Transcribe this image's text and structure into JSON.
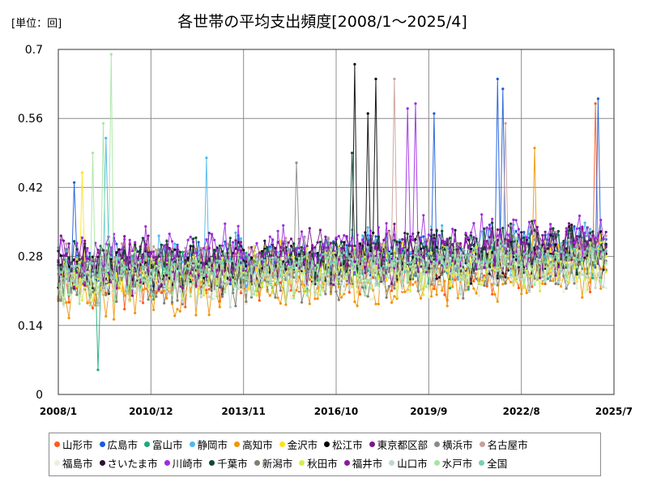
{
  "chart_data": {
    "type": "line",
    "title": "各世帯の平均支出頻度[2008/1～2025/4]",
    "unit_label": "[単位：回]",
    "xlabel": "",
    "ylabel": "",
    "ylim": [
      0,
      0.7
    ],
    "y_ticks": [
      "0",
      "0.14",
      "0.28",
      "0.42",
      "0.56",
      "0.7"
    ],
    "x_ticks": [
      "2008/1",
      "2010/12",
      "2013/11",
      "2016/10",
      "2019/9",
      "2022/8",
      "2025/7"
    ],
    "x_range": [
      "2008/1",
      "2025/7"
    ],
    "grid": true,
    "legend_position": "bottom",
    "series": [
      {
        "name": "山形市",
        "color": "#ff5a1a",
        "base": 0.22,
        "spread": 0.06,
        "peaks": [
          [
            "2024/12",
            0.59
          ]
        ]
      },
      {
        "name": "広島市",
        "color": "#1a5adc",
        "base": 0.26,
        "spread": 0.06,
        "peaks": [
          [
            "2008/7",
            0.43
          ],
          [
            "2019/11",
            0.57
          ],
          [
            "2021/11",
            0.64
          ],
          [
            "2022/1",
            0.62
          ],
          [
            "2025/1",
            0.6
          ]
        ]
      },
      {
        "name": "富山市",
        "color": "#20a87a",
        "base": 0.24,
        "spread": 0.06,
        "peaks": [
          [
            "2009/4",
            0.05
          ]
        ]
      },
      {
        "name": "静岡市",
        "color": "#4db8f0",
        "base": 0.26,
        "spread": 0.06,
        "peaks": [
          [
            "2009/7",
            0.52
          ],
          [
            "2012/9",
            0.48
          ]
        ]
      },
      {
        "name": "高知市",
        "color": "#f0960a",
        "base": 0.2,
        "spread": 0.06,
        "peaks": [
          [
            "2023/1",
            0.5
          ]
        ]
      },
      {
        "name": "金沢市",
        "color": "#ffe21a",
        "base": 0.24,
        "spread": 0.06,
        "peaks": [
          [
            "2008/10",
            0.45
          ]
        ]
      },
      {
        "name": "松江市",
        "color": "#000000",
        "base": 0.25,
        "spread": 0.06,
        "peaks": [
          [
            "2017/5",
            0.67
          ],
          [
            "2017/10",
            0.57
          ],
          [
            "2018/1",
            0.64
          ]
        ]
      },
      {
        "name": "東京都区部",
        "color": "#7a1a8a",
        "base": 0.27,
        "spread": 0.06,
        "peaks": []
      },
      {
        "name": "横浜市",
        "color": "#8a8a8a",
        "base": 0.24,
        "spread": 0.06,
        "peaks": [
          [
            "2015/7",
            0.47
          ]
        ]
      },
      {
        "name": "名古屋市",
        "color": "#c8a09a",
        "base": 0.26,
        "spread": 0.06,
        "peaks": [
          [
            "2018/8",
            0.64
          ],
          [
            "2022/2",
            0.55
          ]
        ]
      },
      {
        "name": "福島市",
        "color": "#e6f2dc",
        "base": 0.22,
        "spread": 0.06,
        "peaks": []
      },
      {
        "name": "さいたま市",
        "color": "#2a1030",
        "base": 0.25,
        "spread": 0.06,
        "peaks": []
      },
      {
        "name": "川崎市",
        "color": "#a02ae0",
        "base": 0.28,
        "spread": 0.06,
        "peaks": [
          [
            "2019/4",
            0.59
          ],
          [
            "2019/1",
            0.58
          ]
        ]
      },
      {
        "name": "千葉市",
        "color": "#104a30",
        "base": 0.26,
        "spread": 0.06,
        "peaks": [
          [
            "2017/4",
            0.49
          ]
        ]
      },
      {
        "name": "新潟市",
        "color": "#808070",
        "base": 0.22,
        "spread": 0.06,
        "peaks": []
      },
      {
        "name": "秋田市",
        "color": "#d8ec4a",
        "base": 0.23,
        "spread": 0.06,
        "peaks": []
      },
      {
        "name": "福井市",
        "color": "#8a1a9a",
        "base": 0.25,
        "spread": 0.06,
        "peaks": []
      },
      {
        "name": "山口市",
        "color": "#c0d6d2",
        "base": 0.22,
        "spread": 0.06,
        "peaks": []
      },
      {
        "name": "水戸市",
        "color": "#a6e6a0",
        "base": 0.23,
        "spread": 0.06,
        "peaks": [
          [
            "2009/9",
            0.69
          ],
          [
            "2009/6",
            0.55
          ],
          [
            "2009/2",
            0.49
          ]
        ]
      },
      {
        "name": "全国",
        "color": "#7acfb0",
        "base": 0.25,
        "spread": 0.03,
        "peaks": []
      }
    ]
  }
}
